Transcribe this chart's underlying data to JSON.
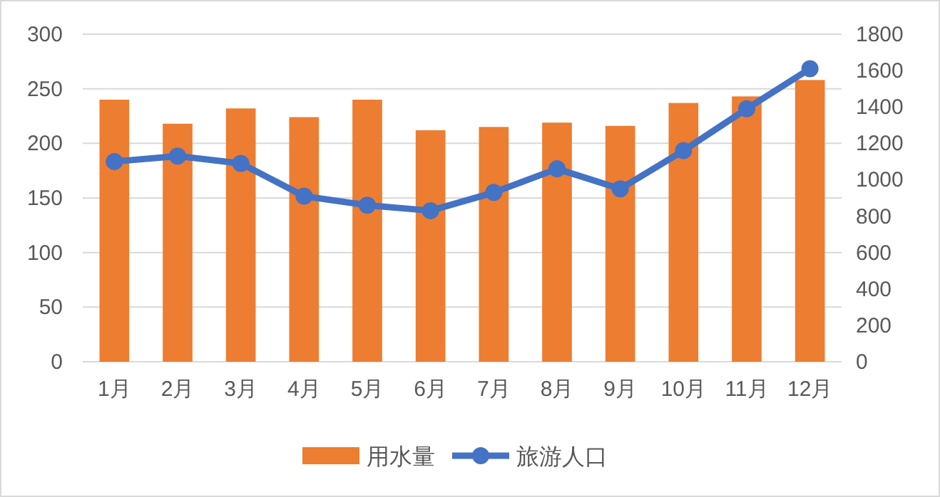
{
  "chart_data": {
    "type": "bar",
    "categories": [
      "1月",
      "2月",
      "3月",
      "4月",
      "5月",
      "6月",
      "7月",
      "8月",
      "9月",
      "10月",
      "11月",
      "12月"
    ],
    "series": [
      {
        "name": "用水量",
        "color": "#ed7d31",
        "values": [
          240,
          218,
          232,
          224,
          240,
          212,
          215,
          219,
          216,
          237,
          243,
          258
        ]
      },
      {
        "name": "旅游人口",
        "type": "line",
        "axis": "y2",
        "marker": "circle",
        "color": "#4472c4",
        "values": [
          1100,
          1130,
          1090,
          910,
          860,
          830,
          930,
          1060,
          950,
          1160,
          1390,
          1610
        ]
      }
    ],
    "ylim": [
      0,
      300
    ],
    "yticks": [
      0,
      50,
      100,
      150,
      200,
      250,
      300
    ],
    "y2lim": [
      0,
      1800
    ],
    "y2ticks": [
      0,
      200,
      400,
      600,
      800,
      1000,
      1200,
      1400,
      1600,
      1800
    ],
    "grid": "y",
    "legend": "bottom"
  }
}
